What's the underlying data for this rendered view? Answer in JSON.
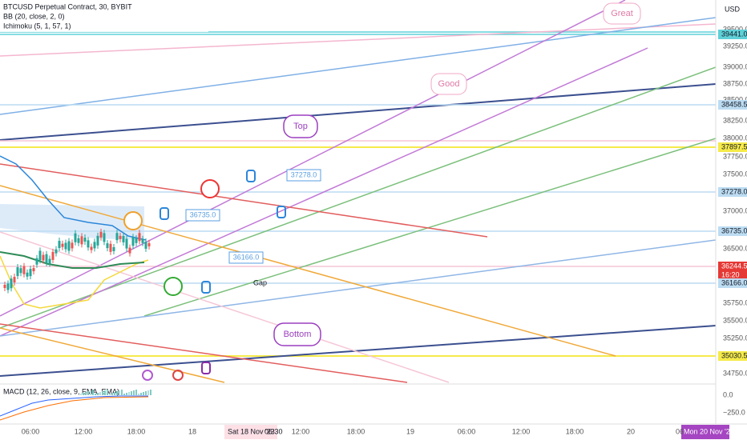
{
  "header": {
    "symbol": "BTCUSD Perpetual Contract, 30, BYBIT",
    "indicators": [
      "BB (20, close, 2, 0)",
      "Ichimoku (5, 1, 57, 1)"
    ]
  },
  "price_axis": {
    "currency": "USD",
    "labels": [
      "39500.0",
      "39250.0",
      "39000.0",
      "38750.0",
      "38500.0",
      "38250.0",
      "38000.0",
      "37750.0",
      "37500.0",
      "37000.0",
      "36500.0",
      "35750.0",
      "35500.0",
      "35250.0",
      "34750.0"
    ],
    "tags": [
      "39441.0",
      "38458.5",
      "37897.5",
      "37278.0",
      "36735.0",
      "36244.5",
      "16:20",
      "36166.0",
      "35030.5"
    ]
  },
  "macd": {
    "label": "MACD (12, 26, close, 9, EMA, EMA)",
    "axis": [
      "0.0",
      "−250.0"
    ]
  },
  "time_axis": {
    "labels": [
      "06:00",
      "12:00",
      "18:00",
      "18",
      "12:00",
      "18:00",
      "19",
      "06:00",
      "12:00",
      "18:00",
      "20",
      "06"
    ],
    "cursor_start": "Sat 18 Nov '23",
    "cursor_time": "06:30",
    "cursor_end": "Mon 20 Nov '23"
  },
  "annotations": {
    "great": "Great",
    "good": "Good",
    "top": "Top",
    "bottom": "Bottom",
    "note1": "37278.0",
    "note2": "36735.0",
    "note3": "36166.0",
    "gap": "Gap"
  }
}
